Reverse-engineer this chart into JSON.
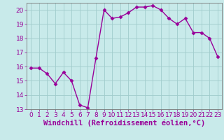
{
  "x": [
    0,
    1,
    2,
    3,
    4,
    5,
    6,
    7,
    8,
    9,
    10,
    11,
    12,
    13,
    14,
    15,
    16,
    17,
    18,
    19,
    20,
    21,
    22,
    23
  ],
  "y": [
    15.9,
    15.9,
    15.5,
    14.8,
    15.6,
    15.0,
    13.3,
    13.1,
    16.6,
    20.0,
    19.4,
    19.5,
    19.8,
    20.2,
    20.2,
    20.3,
    20.0,
    19.4,
    19.0,
    19.4,
    18.4,
    18.4,
    18.0,
    16.7
  ],
  "line_color": "#990099",
  "marker": "D",
  "marker_size": 2.5,
  "bg_color": "#c8eaea",
  "grid_color": "#a0cccc",
  "xlabel": "Windchill (Refroidissement éolien,°C)",
  "ylabel": "",
  "xlim": [
    -0.5,
    23.5
  ],
  "ylim": [
    13,
    20.5
  ],
  "yticks": [
    13,
    14,
    15,
    16,
    17,
    18,
    19,
    20
  ],
  "xticks": [
    0,
    1,
    2,
    3,
    4,
    5,
    6,
    7,
    8,
    9,
    10,
    11,
    12,
    13,
    14,
    15,
    16,
    17,
    18,
    19,
    20,
    21,
    22,
    23
  ],
  "xlabel_color": "#990099",
  "tick_color": "#990099",
  "font_size": 6.5,
  "xlabel_font_size": 7.5,
  "line_width": 1.0,
  "border_color": "#777777"
}
